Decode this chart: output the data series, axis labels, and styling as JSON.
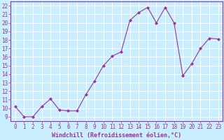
{
  "x": [
    0,
    1,
    2,
    3,
    4,
    5,
    6,
    7,
    8,
    9,
    10,
    11,
    12,
    13,
    14,
    15,
    16,
    17,
    18,
    19,
    20,
    21,
    22,
    23
  ],
  "y": [
    10.2,
    9.0,
    9.0,
    10.2,
    11.1,
    9.8,
    9.7,
    9.7,
    11.6,
    13.2,
    15.0,
    16.1,
    16.6,
    20.3,
    21.2,
    21.8,
    20.0,
    21.8,
    20.0,
    13.8,
    15.2,
    17.0,
    18.2,
    18.1
  ],
  "line_color": "#993399",
  "marker": "D",
  "marker_size": 2,
  "bg_color": "#c8eeff",
  "grid_color": "#ffffff",
  "xlabel": "Windchill (Refroidissement éolien,°C)",
  "xlabel_color": "#993399",
  "tick_color": "#993399",
  "ylim": [
    8.5,
    22.5
  ],
  "xlim": [
    -0.5,
    23.5
  ],
  "yticks": [
    9,
    10,
    11,
    12,
    13,
    14,
    15,
    16,
    17,
    18,
    19,
    20,
    21,
    22
  ],
  "xticks": [
    0,
    1,
    2,
    3,
    4,
    5,
    6,
    7,
    8,
    9,
    10,
    11,
    12,
    13,
    14,
    15,
    16,
    17,
    18,
    19,
    20,
    21,
    22,
    23
  ],
  "tick_fontsize": 5.5,
  "xlabel_fontsize": 6.0
}
